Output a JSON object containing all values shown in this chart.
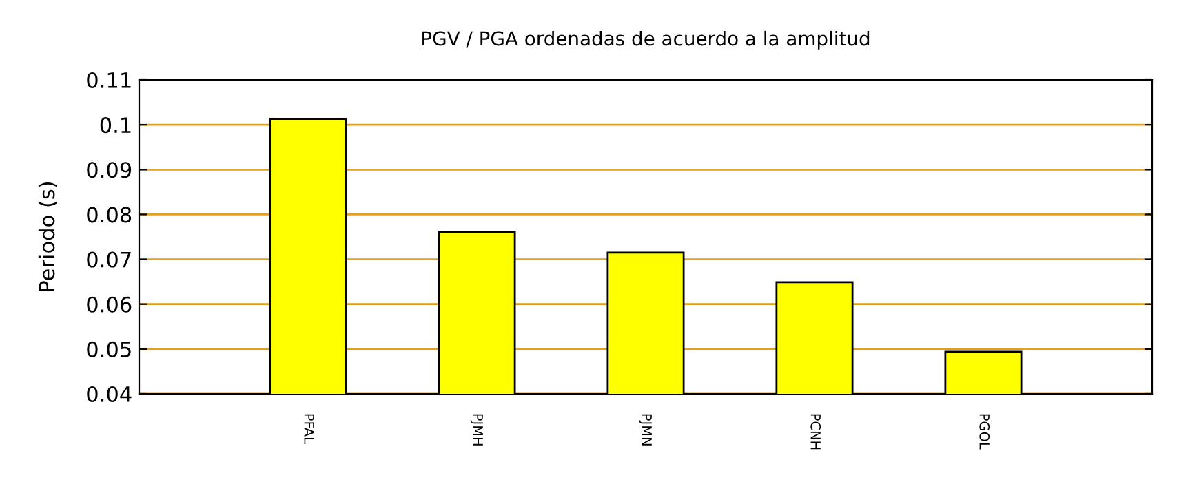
{
  "chart_data": {
    "type": "bar",
    "title": "PGV / PGA ordenadas de acuerdo a la amplitud",
    "ylabel": "Periodo (s)",
    "categories": [
      "PFAL",
      "PJMH",
      "PJMN",
      "PCNH",
      "PGOL"
    ],
    "values": [
      0.1013,
      0.0761,
      0.0715,
      0.0649,
      0.0494
    ],
    "color": "#ffff00",
    "ylim": [
      0.04,
      0.11
    ],
    "yticks": [
      0.04,
      0.05,
      0.06,
      0.07,
      0.08,
      0.09,
      0.1,
      0.11
    ],
    "grid": "y"
  }
}
